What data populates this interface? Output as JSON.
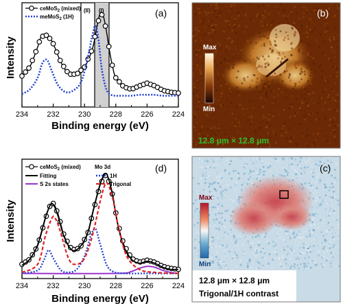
{
  "panels": {
    "a": {
      "label": "(a)",
      "xlabel": "Binding energy (eV)",
      "ylabel": "Intensity",
      "xticks": [
        "234",
        "232",
        "230",
        "228",
        "226",
        "224"
      ],
      "xlim": [
        234,
        224
      ],
      "region_labels": [
        "(II)",
        "(I)"
      ],
      "legend": [
        {
          "text": "ceMoS",
          "sub": "2",
          "suffix": " (mixed)",
          "style": "black-open-circles"
        },
        {
          "text": "meMoS",
          "sub": "2",
          "suffix": " (1H)",
          "style": "blue-dotted"
        }
      ]
    },
    "b": {
      "label": "(b)",
      "colorbar_max": "Max",
      "colorbar_min": "Min",
      "scale_text": "12.8 μm × 12.8 μm"
    },
    "c": {
      "label": "(c)",
      "colorbar_max": "Max",
      "colorbar_min": "Min",
      "scale_text": "12.8 μm × 12.8 μm",
      "contrast_text": "Trigonal/1H contrast"
    },
    "d": {
      "label": "(d)",
      "xlabel": "Binding energy (eV)",
      "ylabel": "Intensity",
      "xticks": [
        "234",
        "232",
        "230",
        "228",
        "226",
        "224"
      ],
      "xlim": [
        234,
        224
      ],
      "legend_left": [
        {
          "text": "ceMoS",
          "sub": "2",
          "suffix": " (mixed)",
          "style": "black-open-circles"
        },
        {
          "text": "Fitting",
          "sub": "",
          "suffix": "",
          "style": "black-solid"
        },
        {
          "text": "S 2s states",
          "sub": "",
          "suffix": "",
          "style": "purple-solid"
        }
      ],
      "legend_right_title": "Mo 3d",
      "legend_right": [
        {
          "text": "1H",
          "style": "blue-dotted"
        },
        {
          "text": "Trigonal",
          "style": "red-dashed"
        }
      ]
    }
  },
  "chart_data": [
    {
      "type": "line",
      "panel": "a",
      "xlabel": "Binding energy (eV)",
      "ylabel": "Intensity",
      "xlim": [
        234,
        224
      ],
      "series": [
        {
          "name": "ceMoS2 (mixed)",
          "x": [
            234,
            233.5,
            233,
            232.8,
            232.5,
            232.3,
            232,
            231.5,
            231,
            230.5,
            230,
            229.5,
            229.2,
            229,
            228.8,
            228.6,
            228.4,
            228.2,
            228,
            227.5,
            227,
            226.5,
            226,
            225.5,
            225,
            224.5,
            224
          ],
          "values": [
            0.3,
            0.4,
            0.62,
            0.73,
            0.76,
            0.74,
            0.66,
            0.45,
            0.32,
            0.32,
            0.4,
            0.6,
            0.85,
            1.0,
            0.97,
            0.8,
            0.58,
            0.4,
            0.28,
            0.18,
            0.15,
            0.19,
            0.22,
            0.19,
            0.14,
            0.12,
            0.11
          ]
        },
        {
          "name": "meMoS2 (1H)",
          "x": [
            234,
            233.5,
            233,
            232.7,
            232.4,
            232.1,
            231.7,
            231.2,
            230.7,
            230.2,
            229.8,
            229.5,
            229.3,
            229.1,
            228.9,
            228.6,
            228.3,
            228,
            227.5,
            227,
            226.5,
            226,
            225.5,
            225,
            224.5,
            224
          ],
          "values": [
            0.1,
            0.15,
            0.28,
            0.44,
            0.48,
            0.36,
            0.2,
            0.12,
            0.14,
            0.24,
            0.5,
            0.75,
            0.86,
            0.7,
            0.38,
            0.15,
            0.09,
            0.08,
            0.08,
            0.08,
            0.09,
            0.09,
            0.09,
            0.08,
            0.08,
            0.08
          ]
        }
      ]
    },
    {
      "type": "line",
      "panel": "d",
      "xlabel": "Binding energy (eV)",
      "ylabel": "Intensity",
      "xlim": [
        234,
        224
      ],
      "series": [
        {
          "name": "ceMoS2 (mixed)",
          "x": [
            234,
            233.5,
            233,
            232.5,
            232.2,
            232,
            231.7,
            231.3,
            230.8,
            230.3,
            229.8,
            229.4,
            229,
            228.7,
            228.5,
            228.2,
            227.9,
            227.5,
            227,
            226.5,
            226,
            225.5,
            225,
            224.5,
            224
          ],
          "values": [
            0.1,
            0.15,
            0.28,
            0.55,
            0.68,
            0.7,
            0.6,
            0.38,
            0.24,
            0.26,
            0.4,
            0.65,
            0.88,
            0.98,
            0.95,
            0.78,
            0.52,
            0.3,
            0.16,
            0.12,
            0.14,
            0.12,
            0.08,
            0.06,
            0.05
          ]
        },
        {
          "name": "Fitting",
          "x": [
            234,
            233.5,
            233,
            232.5,
            232.2,
            232,
            231.7,
            231.3,
            230.8,
            230.3,
            229.8,
            229.4,
            229,
            228.7,
            228.5,
            228.2,
            227.9,
            227.5,
            227,
            226.5,
            226,
            225.5,
            225,
            224.5,
            224
          ],
          "values": [
            0.09,
            0.15,
            0.29,
            0.56,
            0.68,
            0.69,
            0.58,
            0.37,
            0.24,
            0.27,
            0.41,
            0.66,
            0.89,
            0.99,
            0.96,
            0.78,
            0.51,
            0.28,
            0.15,
            0.11,
            0.13,
            0.11,
            0.07,
            0.05,
            0.05
          ]
        },
        {
          "name": "S 2s states",
          "x": [
            234,
            228,
            227,
            226.5,
            226,
            225.5,
            225,
            224.5,
            224
          ],
          "values": [
            0.01,
            0.01,
            0.03,
            0.06,
            0.08,
            0.07,
            0.04,
            0.02,
            0.01
          ]
        },
        {
          "name": "1H",
          "x": [
            234,
            233,
            232.6,
            232.3,
            232,
            231.5,
            231,
            230.5,
            230,
            229.6,
            229.3,
            229,
            228.6,
            228.2,
            227.5,
            226,
            224
          ],
          "values": [
            0.01,
            0.04,
            0.14,
            0.24,
            0.16,
            0.04,
            0.02,
            0.05,
            0.18,
            0.38,
            0.45,
            0.3,
            0.1,
            0.03,
            0.01,
            0.01,
            0.01
          ]
        },
        {
          "name": "Trigonal",
          "x": [
            234,
            233,
            232.5,
            232.1,
            231.9,
            231.6,
            231,
            230.5,
            230,
            229.5,
            229,
            228.7,
            228.5,
            228.2,
            227.8,
            227.3,
            226.5,
            225.5,
            224
          ],
          "values": [
            0.02,
            0.1,
            0.38,
            0.55,
            0.56,
            0.45,
            0.15,
            0.1,
            0.16,
            0.38,
            0.72,
            0.88,
            0.89,
            0.75,
            0.45,
            0.18,
            0.05,
            0.02,
            0.01
          ]
        }
      ]
    }
  ]
}
